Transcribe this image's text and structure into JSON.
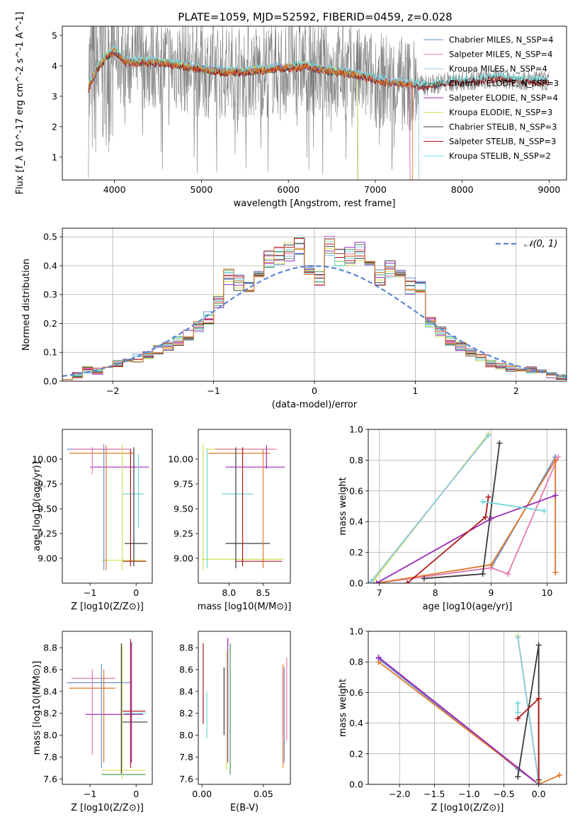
{
  "title": "PLATE=1059, MJD=52592, FIBERID=0459, z=0.028",
  "colors": {
    "chabrier_miles": "#6a8fd8",
    "salpeter_miles": "#e87ab0",
    "kroupa_miles": "#8cc8e8",
    "chabrier_elodie": "#4a9a5a",
    "salpeter_elodie": "#9a2ab8",
    "kroupa_elodie": "#cde05a",
    "chabrier_stelib": "#3a3a3a",
    "salpeter_stelib": "#b01818",
    "kroupa_stelib": "#6fd8d8",
    "orange": "#e07a2a",
    "data_gray": "#7a7a7a"
  },
  "chart_data": [
    {
      "id": "spectrum",
      "type": "line",
      "xlabel": "wavelength [Angstrom, rest frame]",
      "ylabel": "Flux [f_λ 10^-17 erg cm^-2 s^-1 A^-1]",
      "xlim": [
        3400,
        9200
      ],
      "ylim": [
        0.25,
        5.3
      ],
      "xticks": [
        "4000",
        "5000",
        "6000",
        "7000",
        "8000",
        "9000"
      ],
      "yticks": [
        "1",
        "2",
        "3",
        "4",
        "5"
      ],
      "legend_location": "upper right",
      "legend": [
        "Chabrier MILES, N_SSP=4",
        "Salpeter MILES, N_SSP=4",
        "Kroupa MILES, N_SSP=4",
        "Chabrier ELODIE, N_SSP=3",
        "Salpeter ELODIE, N_SSP=4",
        "Kroupa ELODIE, N_SSP=3",
        "Chabrier STELIB, N_SSP=3",
        "Salpeter STELIB, N_SSP=3",
        "Kroupa STELIB, N_SSP=2"
      ],
      "continuum": {
        "x": [
          3700,
          3800,
          3900,
          4000,
          4100,
          4200,
          4300,
          4500,
          4700,
          4900,
          5100,
          5300,
          5500,
          5800,
          6000,
          6200,
          6400,
          6600,
          6800,
          7000,
          7200,
          7400,
          7600,
          7800,
          8000,
          8200,
          8400,
          8600,
          8800,
          9000
        ],
        "y": [
          3.3,
          3.9,
          4.3,
          4.5,
          4.2,
          4.1,
          4.15,
          4.1,
          4.05,
          3.95,
          3.85,
          3.8,
          3.8,
          3.9,
          3.95,
          4.0,
          3.85,
          3.8,
          3.7,
          3.55,
          3.45,
          3.4,
          3.35,
          3.45,
          3.5,
          3.55,
          3.6,
          3.55,
          3.5,
          3.5
        ]
      }
    },
    {
      "id": "residuals",
      "type": "line",
      "xlabel": "(data-model)/error",
      "ylabel": "Normed distribution",
      "xlim": [
        -2.5,
        2.5
      ],
      "ylim": [
        0,
        0.53
      ],
      "xticks": [
        "−2",
        "−1",
        "0",
        "1",
        "2"
      ],
      "yticks": [
        "0.0",
        "0.1",
        "0.2",
        "0.3",
        "0.4",
        "0.5"
      ],
      "legend": [
        "𝒩(0, 1)"
      ],
      "grid": true,
      "bin_edges": [
        -2.5,
        -2.4,
        -2.3,
        -2.2,
        -2.1,
        -2.0,
        -1.9,
        -1.8,
        -1.7,
        -1.6,
        -1.5,
        -1.4,
        -1.3,
        -1.2,
        -1.1,
        -1.0,
        -0.9,
        -0.8,
        -0.7,
        -0.6,
        -0.5,
        -0.4,
        -0.3,
        -0.2,
        -0.1,
        0.0,
        0.1,
        0.2,
        0.3,
        0.4,
        0.5,
        0.6,
        0.7,
        0.8,
        0.9,
        1.0,
        1.1,
        1.2,
        1.3,
        1.4,
        1.5,
        1.6,
        1.7,
        1.8,
        1.9,
        2.0,
        2.1,
        2.2,
        2.3,
        2.4,
        2.5
      ],
      "hist_base": [
        0.015,
        0.02,
        0.04,
        0.035,
        0.04,
        0.06,
        0.075,
        0.08,
        0.09,
        0.11,
        0.12,
        0.14,
        0.16,
        0.19,
        0.22,
        0.28,
        0.36,
        0.34,
        0.33,
        0.36,
        0.42,
        0.43,
        0.45,
        0.46,
        0.4,
        0.36,
        0.47,
        0.43,
        0.43,
        0.45,
        0.39,
        0.36,
        0.39,
        0.38,
        0.33,
        0.32,
        0.2,
        0.17,
        0.14,
        0.12,
        0.1,
        0.08,
        0.06,
        0.05,
        0.045,
        0.035,
        0.04,
        0.03,
        0.02,
        0.015
      ]
    },
    {
      "id": "age_vs_Z",
      "type": "scatter",
      "xlabel": "Z [log10(Z/Z⊙)]",
      "ylabel": "age [log10(age/yr)]",
      "xlim": [
        -1.6,
        0.35
      ],
      "ylim": [
        8.75,
        10.3
      ],
      "xticks": [
        "−1",
        "0"
      ],
      "yticks": [
        "9.00",
        "9.25",
        "9.50",
        "9.75",
        "10.00"
      ],
      "hlines": [
        {
          "y": 10.1,
          "x0": -1.5,
          "x1": -0.35,
          "c": "chabrier_miles"
        },
        {
          "y": 10.1,
          "x0": -1.4,
          "x1": -0.1,
          "c": "salpeter_miles"
        },
        {
          "y": 10.06,
          "x0": -1.45,
          "x1": -0.05,
          "c": "orange"
        },
        {
          "y": 9.92,
          "x0": -1.0,
          "x1": 0.28,
          "c": "salpeter_elodie"
        },
        {
          "y": 9.65,
          "x0": -0.3,
          "x1": 0.18,
          "c": "kroupa_stelib"
        },
        {
          "y": 9.15,
          "x0": -0.25,
          "x1": 0.25,
          "c": "chabrier_stelib"
        },
        {
          "y": 8.98,
          "x0": -0.75,
          "x1": 0.2,
          "c": "kroupa_elodie"
        },
        {
          "y": 8.97,
          "x0": -0.3,
          "x1": 0.22,
          "c": "salpeter_stelib"
        }
      ],
      "vlines": [
        {
          "x": -0.7,
          "y0": 8.88,
          "y1": 10.15,
          "c": "chabrier_miles"
        },
        {
          "x": -0.65,
          "y0": 8.88,
          "y1": 10.14,
          "c": "orange"
        },
        {
          "x": -0.95,
          "y0": 9.85,
          "y1": 10.12,
          "c": "salpeter_miles"
        },
        {
          "x": -0.3,
          "y0": 8.88,
          "y1": 10.15,
          "c": "kroupa_elodie"
        },
        {
          "x": -0.12,
          "y0": 8.92,
          "y1": 10.1,
          "c": "salpeter_stelib"
        },
        {
          "x": -0.05,
          "y0": 8.92,
          "y1": 10.12,
          "c": "chabrier_stelib"
        },
        {
          "x": 0.05,
          "y0": 9.3,
          "y1": 10.05,
          "c": "kroupa_stelib"
        }
      ]
    },
    {
      "id": "age_vs_mass",
      "type": "scatter",
      "xlabel": "mass [log10(M/M⊙)]",
      "ylabel": "",
      "xlim": [
        7.55,
        8.9
      ],
      "ylim": [
        8.75,
        10.3
      ],
      "xticks": [
        "8.0",
        "8.5"
      ],
      "yticks": [
        "9.00",
        "9.25",
        "9.50",
        "9.75",
        "10.00"
      ],
      "hlines": [
        {
          "y": 10.1,
          "x0": 7.65,
          "x1": 8.55,
          "c": "kroupa_elodie"
        },
        {
          "y": 10.1,
          "x0": 7.8,
          "x1": 8.7,
          "c": "salpeter_miles"
        },
        {
          "y": 10.06,
          "x0": 7.7,
          "x1": 8.6,
          "c": "orange"
        },
        {
          "y": 9.92,
          "x0": 7.95,
          "x1": 8.82,
          "c": "salpeter_elodie"
        },
        {
          "y": 9.65,
          "x0": 7.9,
          "x1": 8.35,
          "c": "kroupa_stelib"
        },
        {
          "y": 9.15,
          "x0": 7.95,
          "x1": 8.6,
          "c": "chabrier_stelib"
        },
        {
          "y": 8.99,
          "x0": 7.6,
          "x1": 8.8,
          "c": "kroupa_elodie"
        },
        {
          "y": 8.97,
          "x0": 8.1,
          "x1": 8.78,
          "c": "salpeter_stelib"
        }
      ],
      "vlines": [
        {
          "x": 7.62,
          "y0": 8.88,
          "y1": 10.15,
          "c": "kroupa_elodie"
        },
        {
          "x": 7.68,
          "y0": 8.9,
          "y1": 10.1,
          "c": "kroupa_stelib"
        },
        {
          "x": 8.1,
          "y0": 8.9,
          "y1": 10.12,
          "c": "chabrier_stelib"
        },
        {
          "x": 8.2,
          "y0": 8.92,
          "y1": 10.12,
          "c": "salpeter_stelib"
        },
        {
          "x": 8.5,
          "y0": 8.9,
          "y1": 10.1,
          "c": "orange"
        },
        {
          "x": 8.55,
          "y0": 9.9,
          "y1": 10.14,
          "c": "salpeter_elodie"
        }
      ]
    },
    {
      "id": "weight_vs_age",
      "type": "line",
      "xlabel": "age [log10(age/yr)]",
      "ylabel": "mass weight",
      "xlim": [
        6.8,
        10.35
      ],
      "ylim": [
        0,
        1.0
      ],
      "xticks": [
        "7",
        "8",
        "9",
        "10"
      ],
      "yticks": [
        "0.0",
        "0.2",
        "0.4",
        "0.6",
        "0.8",
        "1.0"
      ],
      "grid": true,
      "series": [
        {
          "c": "chabrier_miles",
          "x": [
            6.95,
            9.0,
            10.15,
            10.15
          ],
          "y": [
            0.0,
            0.1,
            0.82,
            0.07
          ]
        },
        {
          "c": "salpeter_miles",
          "x": [
            6.95,
            9.0,
            9.3,
            10.2
          ],
          "y": [
            0.0,
            0.1,
            0.06,
            0.82
          ]
        },
        {
          "c": "orange",
          "x": [
            6.95,
            9.0,
            10.15,
            10.15
          ],
          "y": [
            0.0,
            0.12,
            0.8,
            0.07
          ]
        },
        {
          "c": "kroupa_elodie",
          "x": [
            6.9,
            8.95
          ],
          "y": [
            0.02,
            0.97
          ]
        },
        {
          "c": "kroupa_miles",
          "x": [
            6.85,
            8.95
          ],
          "y": [
            0.01,
            0.96
          ]
        },
        {
          "c": "salpeter_elodie",
          "x": [
            6.95,
            9.0,
            10.15
          ],
          "y": [
            0.0,
            0.42,
            0.57
          ]
        },
        {
          "c": "salpeter_stelib",
          "x": [
            7.5,
            8.9,
            8.95
          ],
          "y": [
            0.0,
            0.43,
            0.56
          ]
        },
        {
          "c": "chabrier_stelib",
          "x": [
            7.8,
            8.85,
            9.15
          ],
          "y": [
            0.03,
            0.06,
            0.91
          ]
        },
        {
          "c": "kroupa_stelib",
          "x": [
            8.85,
            9.95
          ],
          "y": [
            0.53,
            0.47
          ]
        }
      ]
    },
    {
      "id": "mass_vs_Z",
      "type": "scatter",
      "xlabel": "Z [log10(Z/Z⊙)]",
      "ylabel": "mass [log10(M/M⊙)]",
      "xlim": [
        -1.6,
        0.35
      ],
      "ylim": [
        7.55,
        8.95
      ],
      "xticks": [
        "−1",
        "0"
      ],
      "yticks": [
        "7.6",
        "7.8",
        "8.0",
        "8.2",
        "8.4",
        "8.6",
        "8.8"
      ],
      "hlines": [
        {
          "y": 8.52,
          "x0": -1.4,
          "x1": -0.45,
          "c": "salpeter_miles"
        },
        {
          "y": 8.48,
          "x0": -1.5,
          "x1": -0.1,
          "c": "chabrier_miles"
        },
        {
          "y": 8.43,
          "x0": -1.45,
          "x1": -0.45,
          "c": "orange"
        },
        {
          "y": 8.22,
          "x0": -0.3,
          "x1": 0.2,
          "c": "salpeter_stelib"
        },
        {
          "y": 8.2,
          "x0": -0.25,
          "x1": 0.22,
          "c": "kroupa_stelib"
        },
        {
          "y": 8.19,
          "x0": -1.1,
          "x1": 0.15,
          "c": "salpeter_elodie"
        },
        {
          "y": 8.12,
          "x0": -0.3,
          "x1": 0.25,
          "c": "chabrier_stelib"
        },
        {
          "y": 7.68,
          "x0": -0.75,
          "x1": 0.2,
          "c": "kroupa_elodie"
        },
        {
          "y": 7.64,
          "x0": -0.75,
          "x1": 0.2,
          "c": "chabrier_elodie"
        }
      ],
      "vlines": [
        {
          "x": -0.95,
          "y0": 7.82,
          "y1": 8.6,
          "c": "salpeter_miles"
        },
        {
          "x": -0.75,
          "y0": 7.7,
          "y1": 8.65,
          "c": "chabrier_miles"
        },
        {
          "x": -0.7,
          "y0": 7.75,
          "y1": 8.6,
          "c": "orange"
        },
        {
          "x": -0.3,
          "y0": 7.6,
          "y1": 8.82,
          "c": "kroupa_elodie"
        },
        {
          "x": -0.32,
          "y0": 7.65,
          "y1": 8.84,
          "c": "chabrier_stelib"
        },
        {
          "x": -0.12,
          "y0": 7.7,
          "y1": 8.88,
          "c": "salpeter_stelib"
        },
        {
          "x": -0.1,
          "y0": 7.75,
          "y1": 8.85,
          "c": "salpeter_elodie"
        }
      ]
    },
    {
      "id": "mass_vs_ebv",
      "type": "scatter",
      "xlabel": "E(B-V)",
      "ylabel": "",
      "xlim": [
        -0.003,
        0.072
      ],
      "ylim": [
        7.55,
        8.95
      ],
      "xticks": [
        "0.00",
        "0.05"
      ],
      "yticks": [
        "7.6",
        "7.8",
        "8.0",
        "8.2",
        "8.4",
        "8.6",
        "8.8"
      ],
      "vlines": [
        {
          "x": 0.001,
          "y0": 8.1,
          "y1": 8.84,
          "c": "salpeter_stelib"
        },
        {
          "x": 0.004,
          "y0": 7.97,
          "y1": 8.4,
          "c": "kroupa_stelib"
        },
        {
          "x": 0.018,
          "y0": 8.0,
          "y1": 8.62,
          "c": "chabrier_stelib"
        },
        {
          "x": 0.02,
          "y0": 7.68,
          "y1": 8.78,
          "c": "kroupa_elodie"
        },
        {
          "x": 0.021,
          "y0": 7.75,
          "y1": 8.89,
          "c": "salpeter_elodie"
        },
        {
          "x": 0.023,
          "y0": 7.64,
          "y1": 8.84,
          "c": "chabrier_elodie"
        },
        {
          "x": 0.066,
          "y0": 7.7,
          "y1": 8.65,
          "c": "orange"
        },
        {
          "x": 0.067,
          "y0": 7.75,
          "y1": 8.62,
          "c": "chabrier_miles"
        },
        {
          "x": 0.069,
          "y0": 7.95,
          "y1": 8.71,
          "c": "salpeter_miles"
        }
      ]
    },
    {
      "id": "weight_vs_Z",
      "type": "line",
      "xlabel": "Z [log10(Z/Z⊙)]",
      "ylabel": "mass weight",
      "xlim": [
        -2.45,
        0.4
      ],
      "ylim": [
        0,
        1.0
      ],
      "xticks": [
        "−2.0",
        "−1.5",
        "−1.0",
        "−0.5",
        "0.0"
      ],
      "yticks": [
        "0.0",
        "0.2",
        "0.4",
        "0.6",
        "0.8",
        "1.0"
      ],
      "grid": true,
      "series": [
        {
          "c": "chabrier_miles",
          "x": [
            -2.3,
            -0.3,
            0.0
          ],
          "y": [
            0.82,
            0.1,
            0.0
          ]
        },
        {
          "c": "salpeter_miles",
          "x": [
            -2.3,
            0.0
          ],
          "y": [
            0.83,
            0.0
          ]
        },
        {
          "c": "orange",
          "x": [
            -2.3,
            0.0,
            0.3
          ],
          "y": [
            0.8,
            0.0,
            0.06
          ]
        },
        {
          "c": "salpeter_elodie",
          "x": [
            -2.3,
            0.0
          ],
          "y": [
            0.83,
            0.0
          ]
        },
        {
          "c": "kroupa_elodie",
          "x": [
            -0.3,
            0.0
          ],
          "y": [
            0.97,
            0.02
          ]
        },
        {
          "c": "kroupa_miles",
          "x": [
            -0.3,
            0.0
          ],
          "y": [
            0.96,
            0.01
          ]
        },
        {
          "c": "chabrier_stelib",
          "x": [
            -0.3,
            0.0,
            0.0
          ],
          "y": [
            0.05,
            0.91,
            0.03
          ]
        },
        {
          "c": "salpeter_stelib",
          "x": [
            -0.3,
            0.0,
            0.0
          ],
          "y": [
            0.43,
            0.56,
            0.0
          ]
        },
        {
          "c": "kroupa_stelib",
          "x": [
            -0.3,
            -0.3
          ],
          "y": [
            0.53,
            0.47
          ]
        }
      ]
    }
  ]
}
